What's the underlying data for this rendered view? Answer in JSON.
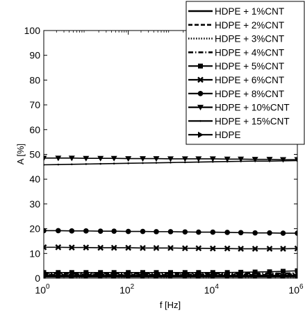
{
  "chart_data": {
    "type": "line",
    "xlabel": "f [Hz]",
    "ylabel": "A [%]",
    "xscale": "log",
    "xlim": [
      1,
      1000000
    ],
    "ylim": [
      0,
      100
    ],
    "x_ticks": [
      {
        "value": 1,
        "base": "10",
        "exp": "0"
      },
      {
        "value": 100,
        "base": "10",
        "exp": "2"
      },
      {
        "value": 10000,
        "base": "10",
        "exp": "4"
      },
      {
        "value": 1000000,
        "base": "10",
        "exp": "6"
      }
    ],
    "y_ticks": [
      "0",
      "10",
      "20",
      "30",
      "40",
      "50",
      "60",
      "70",
      "80",
      "90",
      "100"
    ],
    "legend_position": "top-right",
    "grid": false,
    "series": [
      {
        "name": "HDPE + 1%CNT",
        "style": "solid",
        "marker": "none",
        "x": [
          1,
          10,
          100,
          1000,
          10000,
          100000,
          1000000
        ],
        "y": [
          1.0,
          1.0,
          1.0,
          1.0,
          1.0,
          1.0,
          1.1
        ]
      },
      {
        "name": "HDPE + 2%CNT",
        "style": "dashed",
        "marker": "none",
        "x": [
          1,
          10,
          100,
          1000,
          10000,
          100000,
          1000000
        ],
        "y": [
          1.3,
          1.3,
          1.3,
          1.3,
          1.3,
          1.3,
          1.4
        ]
      },
      {
        "name": "HDPE + 3%CNT",
        "style": "dotted",
        "marker": "none",
        "x": [
          1,
          10,
          100,
          1000,
          10000,
          100000,
          1000000
        ],
        "y": [
          1.6,
          1.6,
          1.6,
          1.6,
          1.6,
          1.6,
          1.7
        ]
      },
      {
        "name": "HDPE + 4%CNT",
        "style": "dashdot",
        "marker": "none",
        "x": [
          1,
          10,
          100,
          1000,
          10000,
          100000,
          1000000
        ],
        "y": [
          1.9,
          1.9,
          1.9,
          1.9,
          1.9,
          1.9,
          2.0
        ]
      },
      {
        "name": "HDPE + 5%CNT",
        "style": "solid",
        "marker": "square",
        "x": [
          1,
          2.2,
          4.6,
          10,
          22,
          46,
          100,
          220,
          460,
          1000,
          2200,
          4600,
          10000,
          22000,
          46000,
          100000,
          220000,
          460000,
          1000000
        ],
        "y": [
          2.3,
          2.3,
          2.3,
          2.3,
          2.3,
          2.3,
          2.3,
          2.3,
          2.3,
          2.3,
          2.3,
          2.3,
          2.3,
          2.3,
          2.4,
          2.5,
          2.6,
          2.8,
          3.0
        ]
      },
      {
        "name": "HDPE + 6%CNT",
        "style": "solid",
        "marker": "x",
        "x": [
          1,
          2.2,
          4.6,
          10,
          22,
          46,
          100,
          220,
          460,
          1000,
          2200,
          4600,
          10000,
          22000,
          46000,
          100000,
          220000,
          460000,
          1000000
        ],
        "y": [
          12.5,
          12.5,
          12.4,
          12.4,
          12.3,
          12.3,
          12.3,
          12.2,
          12.2,
          12.2,
          12.1,
          12.1,
          12.0,
          12.0,
          11.9,
          11.9,
          11.9,
          11.9,
          12.0
        ]
      },
      {
        "name": "HDPE + 8%CNT",
        "style": "solid",
        "marker": "circle",
        "x": [
          1,
          2.2,
          4.6,
          10,
          22,
          46,
          100,
          220,
          460,
          1000,
          2200,
          4600,
          10000,
          22000,
          46000,
          100000,
          220000,
          460000,
          1000000
        ],
        "y": [
          19.2,
          19.2,
          19.1,
          19.1,
          19.0,
          19.0,
          18.9,
          18.9,
          18.8,
          18.8,
          18.7,
          18.6,
          18.6,
          18.5,
          18.4,
          18.3,
          18.3,
          18.2,
          18.2
        ]
      },
      {
        "name": "HDPE + 10%CNT",
        "style": "solid",
        "marker": "triangle-down",
        "x": [
          1,
          2.2,
          4.6,
          10,
          22,
          46,
          100,
          220,
          460,
          1000,
          2200,
          4600,
          10000,
          22000,
          46000,
          100000,
          220000,
          460000,
          1000000
        ],
        "y": [
          48.5,
          48.5,
          48.5,
          48.4,
          48.4,
          48.4,
          48.3,
          48.3,
          48.3,
          48.2,
          48.2,
          48.2,
          48.2,
          48.1,
          48.1,
          48.0,
          48.0,
          47.9,
          47.9
        ]
      },
      {
        "name": "HDPE + 15%CNT",
        "style": "solid",
        "marker": "dot",
        "x": [
          1,
          2.2,
          4.6,
          10,
          22,
          46,
          100,
          220,
          460,
          1000,
          2200,
          4600,
          10000,
          22000,
          46000,
          100000,
          220000,
          460000,
          1000000
        ],
        "y": [
          45.8,
          45.9,
          46.0,
          46.1,
          46.2,
          46.3,
          46.4,
          46.5,
          46.6,
          46.7,
          46.8,
          46.9,
          47.0,
          47.1,
          47.2,
          47.3,
          47.3,
          47.4,
          47.5
        ]
      },
      {
        "name": "HDPE",
        "style": "solid",
        "marker": "triangle-right",
        "x": [
          1,
          2.2,
          4.6,
          10,
          22,
          46,
          100,
          220,
          460,
          1000,
          2200,
          4600,
          10000,
          22000,
          46000,
          100000,
          220000,
          460000,
          1000000
        ],
        "y": [
          0.5,
          0.5,
          0.5,
          0.5,
          0.5,
          0.5,
          0.5,
          0.5,
          0.5,
          0.5,
          0.5,
          0.5,
          0.5,
          0.5,
          0.5,
          0.5,
          0.5,
          0.5,
          0.5
        ]
      }
    ]
  }
}
